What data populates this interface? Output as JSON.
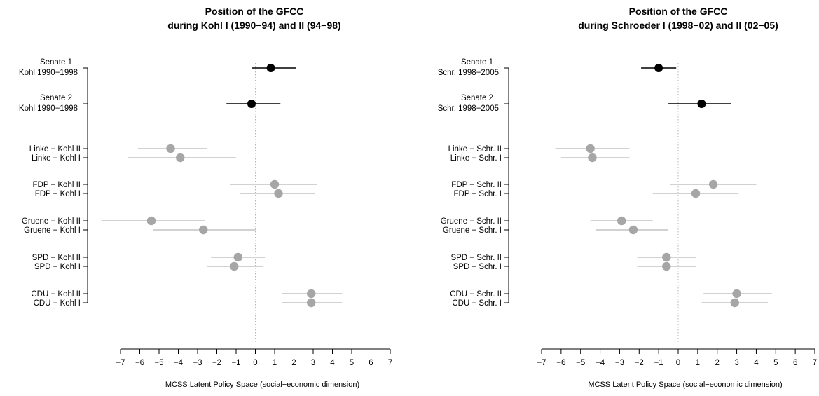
{
  "chart_data": [
    {
      "type": "dot-whisker",
      "title_line1": "Position of the GFCC",
      "title_line2": "during Kohl I (1990−94) and II (94−98)",
      "xlabel": "MCSS Latent Policy Space (social−economic dimension)",
      "xlim": [
        -7,
        7
      ],
      "xticks": [
        -7,
        -6,
        -5,
        -4,
        -3,
        -2,
        -1,
        0,
        1,
        2,
        3,
        4,
        5,
        6,
        7
      ],
      "reference_line": 0,
      "rows": [
        {
          "label1": "Senate 1",
          "label2": "Kohl 1990−1998",
          "estimate": 0.8,
          "lower": -0.2,
          "upper": 2.1,
          "kind": "court"
        },
        {
          "label1": "Senate 2",
          "label2": "Kohl 1990−1998",
          "estimate": -0.2,
          "lower": -1.5,
          "upper": 1.3,
          "kind": "court"
        },
        {
          "label1": "Linke − Kohl II",
          "estimate": -4.4,
          "lower": -6.1,
          "upper": -2.5,
          "kind": "party"
        },
        {
          "label1": "Linke − Kohl I",
          "estimate": -3.9,
          "lower": -6.6,
          "upper": -1.0,
          "kind": "party"
        },
        {
          "label1": "FDP − Kohl II",
          "estimate": 1.0,
          "lower": -1.3,
          "upper": 3.2,
          "kind": "party"
        },
        {
          "label1": "FDP − Kohl I",
          "estimate": 1.2,
          "lower": -0.8,
          "upper": 3.1,
          "kind": "party"
        },
        {
          "label1": "Gruene − Kohl II",
          "estimate": -5.4,
          "lower": -8.0,
          "upper": -2.6,
          "kind": "party"
        },
        {
          "label1": "Gruene − Kohl I",
          "estimate": -2.7,
          "lower": -5.3,
          "upper": 0.0,
          "kind": "party"
        },
        {
          "label1": "SPD − Kohl II",
          "estimate": -0.9,
          "lower": -2.3,
          "upper": 0.5,
          "kind": "party"
        },
        {
          "label1": "SPD − Kohl I",
          "estimate": -1.1,
          "lower": -2.5,
          "upper": 0.4,
          "kind": "party"
        },
        {
          "label1": "CDU − Kohl II",
          "estimate": 2.9,
          "lower": 1.4,
          "upper": 4.5,
          "kind": "party"
        },
        {
          "label1": "CDU − Kohl I",
          "estimate": 2.9,
          "lower": 1.4,
          "upper": 4.5,
          "kind": "party"
        }
      ]
    },
    {
      "type": "dot-whisker",
      "title_line1": "Position of the GFCC",
      "title_line2": "during Schroeder I (1998−02) and II (02−05)",
      "xlabel": "MCSS Latent Policy Space (social−economic dimension)",
      "xlim": [
        -7,
        7
      ],
      "xticks": [
        -7,
        -6,
        -5,
        -4,
        -3,
        -2,
        -1,
        0,
        1,
        2,
        3,
        4,
        5,
        6,
        7
      ],
      "reference_line": 0,
      "rows": [
        {
          "label1": "Senate 1",
          "label2": "Schr. 1998−2005",
          "estimate": -1.0,
          "lower": -1.9,
          "upper": -0.1,
          "kind": "court"
        },
        {
          "label1": "Senate 2",
          "label2": "Schr. 1998−2005",
          "estimate": 1.2,
          "lower": -0.5,
          "upper": 2.7,
          "kind": "court"
        },
        {
          "label1": "Linke − Schr. II",
          "estimate": -4.5,
          "lower": -6.3,
          "upper": -2.5,
          "kind": "party"
        },
        {
          "label1": "Linke − Schr. I",
          "estimate": -4.4,
          "lower": -6.0,
          "upper": -2.5,
          "kind": "party"
        },
        {
          "label1": "FDP − Schr. II",
          "estimate": 1.8,
          "lower": -0.4,
          "upper": 4.0,
          "kind": "party"
        },
        {
          "label1": "FDP − Schr. I",
          "estimate": 0.9,
          "lower": -1.3,
          "upper": 3.1,
          "kind": "party"
        },
        {
          "label1": "Gruene − Schr. II",
          "estimate": -2.9,
          "lower": -4.5,
          "upper": -1.3,
          "kind": "party"
        },
        {
          "label1": "Gruene − Schr. I",
          "estimate": -2.3,
          "lower": -4.2,
          "upper": -0.5,
          "kind": "party"
        },
        {
          "label1": "SPD − Schr. II",
          "estimate": -0.6,
          "lower": -2.1,
          "upper": 0.9,
          "kind": "party"
        },
        {
          "label1": "SPD − Schr. I",
          "estimate": -0.6,
          "lower": -2.1,
          "upper": 0.9,
          "kind": "party"
        },
        {
          "label1": "CDU − Schr. II",
          "estimate": 3.0,
          "lower": 1.3,
          "upper": 4.8,
          "kind": "party"
        },
        {
          "label1": "CDU − Schr. I",
          "estimate": 2.9,
          "lower": 1.2,
          "upper": 4.6,
          "kind": "party"
        }
      ]
    }
  ],
  "colors": {
    "court": "#000000",
    "party": "#a6a6a6",
    "reference": "#b5b5b5"
  }
}
